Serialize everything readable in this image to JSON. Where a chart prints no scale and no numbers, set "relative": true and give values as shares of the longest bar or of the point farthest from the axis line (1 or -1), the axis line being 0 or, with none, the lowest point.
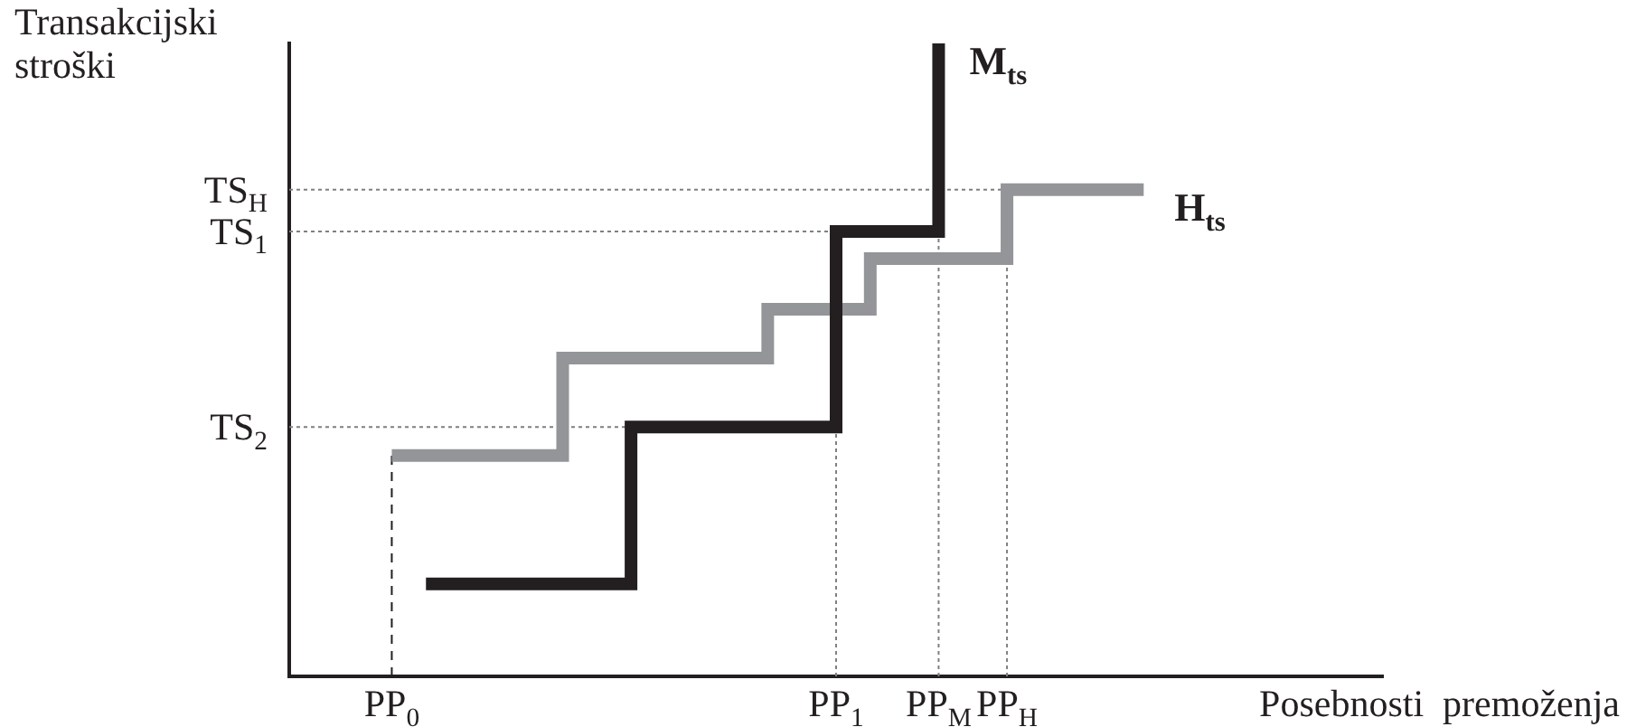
{
  "chart_data": {
    "type": "step",
    "relative": true,
    "xlabel": "Posebnosti  premoženja",
    "ylabel": "Transakcijski stroški",
    "categories": [
      null,
      null,
      null,
      "PP$_{0}$",
      null,
      null,
      null,
      null,
      null,
      null,
      null,
      null,
      null,
      null,
      null,
      null,
      "PP$_{1}$",
      null,
      null,
      "PP$_{M}$",
      null,
      "PP$_{H}$",
      null,
      null,
      null,
      null,
      null,
      null,
      null,
      null,
      null,
      null,
      null
    ],
    "ref_lines": [
      {
        "axis": "y",
        "value": 0.769,
        "label": "TS$_{H}$",
        "color": "#808080",
        "line_style": "dotted"
      },
      {
        "axis": "y",
        "value": 0.703,
        "label": "TS$_{1}$",
        "color": "#808080",
        "line_style": "dotted"
      },
      {
        "axis": "y",
        "value": 0.394,
        "label": "TS$_{2}$",
        "color": "#808080",
        "line_style": "dotted"
      },
      {
        "axis": "x",
        "value": "PP$_{0}$",
        "color": "#231f20",
        "line_style": "dashed"
      },
      {
        "axis": "x",
        "value": "PP$_{1}$",
        "color": "#808080",
        "line_style": "dotted"
      },
      {
        "axis": "x",
        "value": "PP$_{M}$",
        "color": "#808080",
        "line_style": "dotted"
      },
      {
        "axis": "x",
        "value": "PP$_{H}$",
        "color": "#808080",
        "line_style": "dotted"
      }
    ],
    "series": [
      {
        "name": "M$_{ts}$",
        "color": "#231f20",
        "values": [
          null,
          null,
          null,
          null,
          0.146,
          0.146,
          0.146,
          0.146,
          0.146,
          0.146,
          0.394,
          0.394,
          0.394,
          0.394,
          0.394,
          0.394,
          0.703,
          0.703,
          0.703,
          1.0,
          null,
          null,
          null,
          null,
          null,
          null,
          null,
          null,
          null,
          null,
          null,
          null,
          null
        ]
      },
      {
        "name": "H$_{ts}$",
        "color": "#939598",
        "values": [
          null,
          null,
          null,
          0.349,
          0.349,
          0.349,
          0.349,
          0.349,
          0.503,
          0.503,
          0.503,
          0.503,
          0.503,
          0.503,
          0.58,
          0.58,
          0.58,
          0.66,
          0.66,
          0.66,
          0.66,
          0.769,
          0.769,
          0.769,
          0.769,
          0.769,
          null,
          null,
          null,
          null,
          null,
          null,
          null
        ]
      }
    ]
  }
}
